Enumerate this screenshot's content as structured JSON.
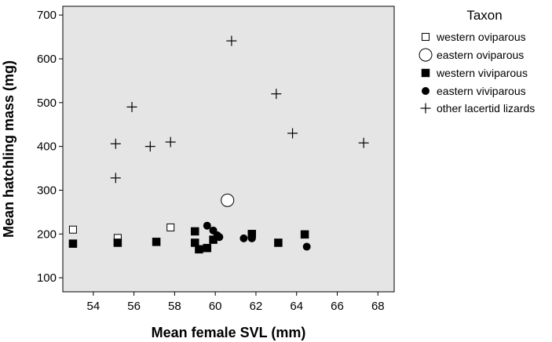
{
  "chart_data": {
    "type": "scatter",
    "title": "",
    "xlabel": "Mean female SVL (mm)",
    "ylabel": "Mean hatchling mass (mg)",
    "xlim": [
      52.5,
      68.8
    ],
    "ylim": [
      68,
      720
    ],
    "xticks": [
      54,
      56,
      58,
      60,
      62,
      64,
      66,
      68
    ],
    "yticks": [
      100,
      200,
      300,
      400,
      500,
      600,
      700
    ],
    "grid": false,
    "plot_background": "#e5e5e5",
    "legend_title": "Taxon",
    "legend_position": "right",
    "series": [
      {
        "name": "western oviparous",
        "marker": "square-open",
        "points": [
          [
            53.0,
            210
          ],
          [
            55.2,
            191
          ],
          [
            57.8,
            215
          ]
        ]
      },
      {
        "name": "eastern oviparous",
        "marker": "circle-open-large",
        "points": [
          [
            60.6,
            277
          ]
        ]
      },
      {
        "name": "western viviparous",
        "marker": "square-filled",
        "points": [
          [
            53.0,
            178
          ],
          [
            55.2,
            180
          ],
          [
            57.1,
            182
          ],
          [
            59.0,
            206
          ],
          [
            59.0,
            180
          ],
          [
            59.2,
            165
          ],
          [
            59.6,
            168
          ],
          [
            59.9,
            187
          ],
          [
            61.8,
            200
          ],
          [
            63.1,
            180
          ],
          [
            64.4,
            199
          ]
        ]
      },
      {
        "name": "eastern viviparous",
        "marker": "circle-filled",
        "points": [
          [
            59.6,
            219
          ],
          [
            59.9,
            208
          ],
          [
            60.1,
            197
          ],
          [
            60.2,
            193
          ],
          [
            61.4,
            190
          ],
          [
            61.8,
            190
          ],
          [
            64.5,
            171
          ]
        ]
      },
      {
        "name": "other lacertid lizards",
        "marker": "plus",
        "points": [
          [
            55.1,
            406
          ],
          [
            55.1,
            328
          ],
          [
            55.9,
            490
          ],
          [
            56.8,
            400
          ],
          [
            57.8,
            410
          ],
          [
            60.8,
            641
          ],
          [
            63.0,
            520
          ],
          [
            63.8,
            430
          ],
          [
            67.3,
            408
          ]
        ]
      }
    ]
  }
}
